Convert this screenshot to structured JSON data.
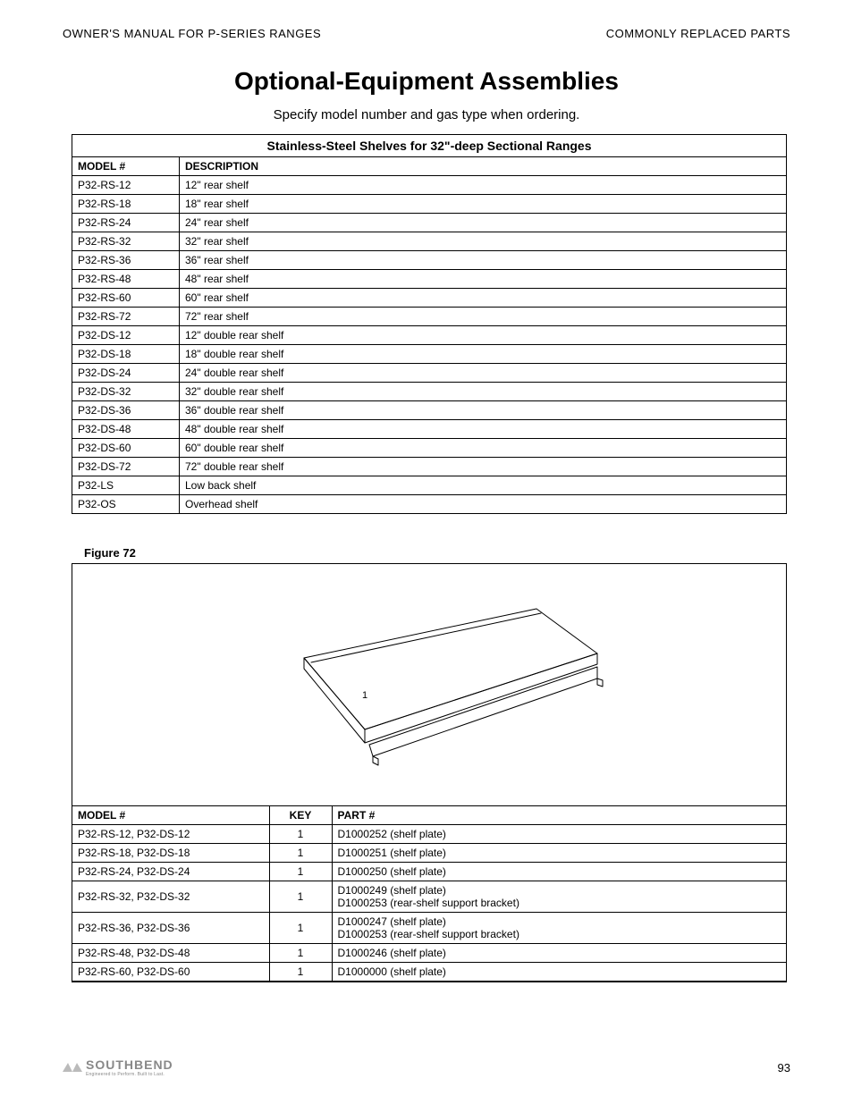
{
  "header": {
    "left": "OWNER'S MANUAL FOR P-SERIES RANGES",
    "right": "COMMONLY REPLACED PARTS"
  },
  "title": "Optional-Equipment Assemblies",
  "subtitle": "Specify model number and gas type when ordering.",
  "table1": {
    "title": "Stainless-Steel Shelves for 32\"-deep Sectional Ranges",
    "headers": [
      "MODEL #",
      "DESCRIPTION"
    ],
    "rows": [
      [
        "P32-RS-12",
        "12\" rear shelf"
      ],
      [
        "P32-RS-18",
        "18\" rear shelf"
      ],
      [
        "P32-RS-24",
        "24\" rear shelf"
      ],
      [
        "P32-RS-32",
        "32\" rear shelf"
      ],
      [
        "P32-RS-36",
        "36\" rear shelf"
      ],
      [
        "P32-RS-48",
        "48\" rear shelf"
      ],
      [
        "P32-RS-60",
        "60\" rear shelf"
      ],
      [
        "P32-RS-72",
        "72\" rear shelf"
      ],
      [
        "P32-DS-12",
        "12\" double rear shelf"
      ],
      [
        "P32-DS-18",
        "18\" double rear shelf"
      ],
      [
        "P32-DS-24",
        "24\" double rear shelf"
      ],
      [
        "P32-DS-32",
        "32\" double rear shelf"
      ],
      [
        "P32-DS-36",
        "36\" double rear shelf"
      ],
      [
        "P32-DS-48",
        "48\" double rear shelf"
      ],
      [
        "P32-DS-60",
        "60\" double rear shelf"
      ],
      [
        "P32-DS-72",
        "72\" double rear shelf"
      ],
      [
        "P32-LS",
        "Low back shelf"
      ],
      [
        "P32-OS",
        "Overhead shelf"
      ]
    ]
  },
  "figure": {
    "label": "Figure 72",
    "stroke": "#000000",
    "fill": "#ffffff",
    "stroke_width": 1
  },
  "table2": {
    "headers": [
      "MODEL #",
      "KEY",
      "PART #"
    ],
    "rows": [
      [
        "P32-RS-12, P32-DS-12",
        "1",
        "D1000252 (shelf plate)"
      ],
      [
        "P32-RS-18, P32-DS-18",
        "1",
        "D1000251 (shelf plate)"
      ],
      [
        "P32-RS-24, P32-DS-24",
        "1",
        "D1000250 (shelf plate)"
      ],
      [
        "P32-RS-32, P32-DS-32",
        "1",
        "D1000249 (shelf plate)\nD1000253 (rear-shelf support bracket)"
      ],
      [
        "P32-RS-36, P32-DS-36",
        "1",
        "D1000247 (shelf plate)\nD1000253 (rear-shelf support bracket)"
      ],
      [
        "P32-RS-48, P32-DS-48",
        "1",
        "D1000246 (shelf plate)"
      ],
      [
        "P32-RS-60, P32-DS-60",
        "1",
        "D1000000 (shelf plate)"
      ]
    ]
  },
  "footer": {
    "logo_text": "SOUTHBEND",
    "tagline": "Engineered to Perform. Built to Last.",
    "page": "93"
  }
}
